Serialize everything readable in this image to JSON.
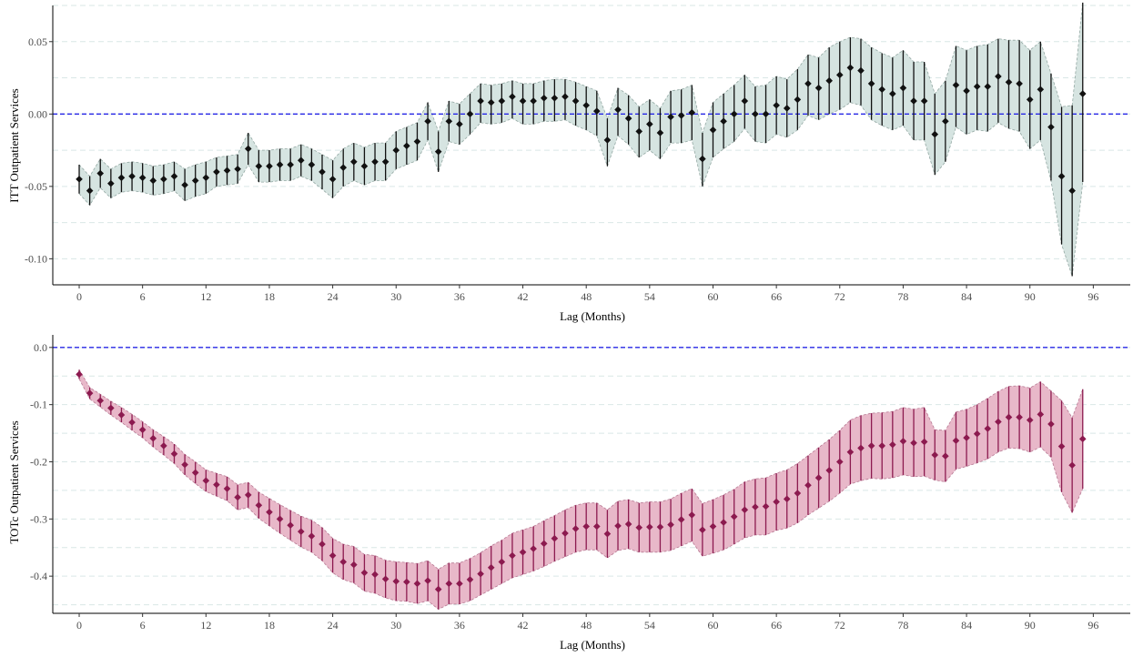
{
  "chart_data": [
    {
      "type": "line",
      "ylabel": "ITT Outpatient Services",
      "xlabel": "Lag (Months)",
      "x_ticks": [
        "0",
        "6",
        "12",
        "18",
        "24",
        "30",
        "36",
        "42",
        "48",
        "54",
        "60",
        "66",
        "72",
        "78",
        "84",
        "90",
        "96"
      ],
      "y_ticks": [
        "0.05",
        "0.00",
        "-0.05",
        "-0.10"
      ],
      "y_tick_values": [
        0.05,
        0.0,
        -0.05,
        -0.1
      ],
      "xlim": [
        -2.5,
        99.5
      ],
      "ylim": [
        -0.118,
        0.075
      ],
      "reference_line": 0.0,
      "grid": "horizontal",
      "colors": {
        "point": "#111111",
        "ribbon": "#d6e4e1",
        "ribbon_edge": "#93a8a3",
        "reference": "#2626e6"
      },
      "series": [
        {
          "x": [
            0,
            1,
            2,
            3,
            4,
            5,
            6,
            7,
            8,
            9,
            10,
            11,
            12,
            13,
            14,
            15,
            16,
            17,
            18,
            19,
            20,
            21,
            22,
            23,
            24,
            25,
            26,
            27,
            28,
            29,
            30,
            31,
            32,
            33,
            34,
            35,
            36,
            37,
            38,
            39,
            40,
            41,
            42,
            43,
            44,
            45,
            46,
            47,
            48,
            49,
            50,
            51,
            52,
            53,
            54,
            55,
            56,
            57,
            58,
            59,
            60,
            61,
            62,
            63,
            64,
            65,
            66,
            67,
            68,
            69,
            70,
            71,
            72,
            73,
            74,
            75,
            76,
            77,
            78,
            79,
            80,
            81,
            82,
            83,
            84,
            85,
            86,
            87,
            88,
            89,
            90,
            91,
            92,
            93,
            94,
            95
          ],
          "values": [
            -0.045,
            -0.053,
            -0.041,
            -0.048,
            -0.044,
            -0.043,
            -0.044,
            -0.046,
            -0.045,
            -0.043,
            -0.049,
            -0.046,
            -0.044,
            -0.04,
            -0.039,
            -0.038,
            -0.024,
            -0.036,
            -0.036,
            -0.035,
            -0.035,
            -0.032,
            -0.035,
            -0.04,
            -0.045,
            -0.037,
            -0.033,
            -0.036,
            -0.033,
            -0.033,
            -0.025,
            -0.022,
            -0.019,
            -0.005,
            -0.026,
            -0.005,
            -0.007,
            0.0,
            0.009,
            0.008,
            0.009,
            0.012,
            0.009,
            0.009,
            0.011,
            0.011,
            0.012,
            0.009,
            0.006,
            0.002,
            -0.018,
            0.003,
            -0.003,
            -0.012,
            -0.007,
            -0.013,
            -0.002,
            -0.001,
            0.001,
            -0.031,
            -0.011,
            -0.005,
            0.0,
            0.009,
            0.0,
            0.0,
            0.006,
            0.004,
            0.01,
            0.021,
            0.018,
            0.023,
            0.027,
            0.032,
            0.03,
            0.021,
            0.017,
            0.014,
            0.018,
            0.009,
            0.009,
            -0.014,
            -0.005,
            0.02,
            0.016,
            0.019,
            0.019,
            0.026,
            0.022,
            0.021,
            0.01,
            0.017,
            -0.009,
            -0.043,
            -0.053,
            0.014
          ],
          "lower": [
            -0.055,
            -0.063,
            -0.051,
            -0.058,
            -0.054,
            -0.053,
            -0.054,
            -0.056,
            -0.055,
            -0.053,
            -0.06,
            -0.057,
            -0.055,
            -0.05,
            -0.049,
            -0.048,
            -0.035,
            -0.047,
            -0.047,
            -0.046,
            -0.046,
            -0.043,
            -0.046,
            -0.052,
            -0.058,
            -0.05,
            -0.046,
            -0.049,
            -0.046,
            -0.046,
            -0.038,
            -0.035,
            -0.032,
            -0.018,
            -0.04,
            -0.019,
            -0.021,
            -0.014,
            -0.006,
            -0.007,
            -0.006,
            -0.003,
            -0.007,
            -0.007,
            -0.005,
            -0.005,
            -0.004,
            -0.008,
            -0.011,
            -0.015,
            -0.036,
            -0.015,
            -0.021,
            -0.03,
            -0.025,
            -0.031,
            -0.02,
            -0.02,
            -0.018,
            -0.05,
            -0.03,
            -0.024,
            -0.019,
            -0.01,
            -0.019,
            -0.02,
            -0.014,
            -0.016,
            -0.011,
            -0.001,
            -0.004,
            0.0,
            0.003,
            0.008,
            0.006,
            -0.004,
            -0.008,
            -0.011,
            -0.008,
            -0.018,
            -0.018,
            -0.042,
            -0.033,
            -0.009,
            -0.014,
            -0.011,
            -0.012,
            -0.006,
            -0.01,
            -0.012,
            -0.024,
            -0.018,
            -0.046,
            -0.09,
            -0.112,
            -0.047
          ],
          "upper": [
            -0.035,
            -0.043,
            -0.031,
            -0.038,
            -0.034,
            -0.033,
            -0.034,
            -0.036,
            -0.035,
            -0.033,
            -0.038,
            -0.035,
            -0.033,
            -0.03,
            -0.029,
            -0.028,
            -0.013,
            -0.025,
            -0.025,
            -0.024,
            -0.024,
            -0.021,
            -0.024,
            -0.028,
            -0.032,
            -0.024,
            -0.02,
            -0.023,
            -0.02,
            -0.02,
            -0.012,
            -0.009,
            -0.006,
            0.008,
            -0.012,
            0.009,
            0.007,
            0.014,
            0.021,
            0.02,
            0.021,
            0.023,
            0.021,
            0.021,
            0.023,
            0.024,
            0.024,
            0.022,
            0.019,
            0.016,
            -0.003,
            0.018,
            0.013,
            0.005,
            0.01,
            0.004,
            0.016,
            0.017,
            0.02,
            -0.013,
            0.008,
            0.014,
            0.02,
            0.027,
            0.019,
            0.02,
            0.026,
            0.024,
            0.031,
            0.041,
            0.039,
            0.046,
            0.05,
            0.053,
            0.052,
            0.046,
            0.042,
            0.039,
            0.044,
            0.036,
            0.036,
            0.014,
            0.023,
            0.047,
            0.044,
            0.047,
            0.048,
            0.052,
            0.051,
            0.051,
            0.044,
            0.05,
            0.028,
            0.005,
            0.006,
            0.077
          ]
        }
      ]
    },
    {
      "type": "line",
      "ylabel": "TOTc Outpatient Services",
      "xlabel": "Lag (Months)",
      "x_ticks": [
        "0",
        "6",
        "12",
        "18",
        "24",
        "30",
        "36",
        "42",
        "48",
        "54",
        "60",
        "66",
        "72",
        "78",
        "84",
        "90",
        "96"
      ],
      "y_ticks": [
        "0.0",
        "-0.1",
        "-0.2",
        "-0.3",
        "-0.4"
      ],
      "y_tick_values": [
        0.0,
        -0.1,
        -0.2,
        -0.3,
        -0.4
      ],
      "xlim": [
        -2.5,
        99.5
      ],
      "ylim": [
        -0.465,
        0.022
      ],
      "reference_line": 0.0,
      "grid": "horizontal",
      "colors": {
        "point": "#8c1a4f",
        "ribbon": "#e8b8c9",
        "ribbon_edge": "#b87a94",
        "reference": "#2626e6"
      },
      "series": [
        {
          "x": [
            0,
            1,
            2,
            3,
            4,
            5,
            6,
            7,
            8,
            9,
            10,
            11,
            12,
            13,
            14,
            15,
            16,
            17,
            18,
            19,
            20,
            21,
            22,
            23,
            24,
            25,
            26,
            27,
            28,
            29,
            30,
            31,
            32,
            33,
            34,
            35,
            36,
            37,
            38,
            39,
            40,
            41,
            42,
            43,
            44,
            45,
            46,
            47,
            48,
            49,
            50,
            51,
            52,
            53,
            54,
            55,
            56,
            57,
            58,
            59,
            60,
            61,
            62,
            63,
            64,
            65,
            66,
            67,
            68,
            69,
            70,
            71,
            72,
            73,
            74,
            75,
            76,
            77,
            78,
            79,
            80,
            81,
            82,
            83,
            84,
            85,
            86,
            87,
            88,
            89,
            90,
            91,
            92,
            93,
            94,
            95
          ],
          "values": [
            -0.047,
            -0.08,
            -0.093,
            -0.106,
            -0.118,
            -0.131,
            -0.144,
            -0.159,
            -0.172,
            -0.186,
            -0.205,
            -0.219,
            -0.233,
            -0.24,
            -0.247,
            -0.262,
            -0.258,
            -0.276,
            -0.288,
            -0.3,
            -0.311,
            -0.322,
            -0.33,
            -0.344,
            -0.364,
            -0.375,
            -0.38,
            -0.394,
            -0.397,
            -0.405,
            -0.409,
            -0.41,
            -0.413,
            -0.408,
            -0.423,
            -0.413,
            -0.413,
            -0.406,
            -0.396,
            -0.385,
            -0.375,
            -0.364,
            -0.358,
            -0.352,
            -0.343,
            -0.334,
            -0.325,
            -0.317,
            -0.313,
            -0.313,
            -0.326,
            -0.312,
            -0.309,
            -0.315,
            -0.314,
            -0.314,
            -0.31,
            -0.301,
            -0.293,
            -0.319,
            -0.313,
            -0.306,
            -0.296,
            -0.284,
            -0.279,
            -0.278,
            -0.27,
            -0.265,
            -0.255,
            -0.241,
            -0.228,
            -0.215,
            -0.2,
            -0.183,
            -0.176,
            -0.172,
            -0.172,
            -0.17,
            -0.164,
            -0.167,
            -0.165,
            -0.188,
            -0.19,
            -0.163,
            -0.158,
            -0.151,
            -0.142,
            -0.13,
            -0.122,
            -0.122,
            -0.127,
            -0.117,
            -0.134,
            -0.173,
            -0.206,
            -0.16
          ],
          "lower": [
            -0.055,
            -0.09,
            -0.104,
            -0.118,
            -0.131,
            -0.145,
            -0.158,
            -0.174,
            -0.188,
            -0.203,
            -0.223,
            -0.238,
            -0.252,
            -0.26,
            -0.268,
            -0.284,
            -0.28,
            -0.299,
            -0.312,
            -0.325,
            -0.337,
            -0.349,
            -0.358,
            -0.373,
            -0.394,
            -0.406,
            -0.412,
            -0.426,
            -0.43,
            -0.438,
            -0.443,
            -0.444,
            -0.448,
            -0.443,
            -0.458,
            -0.449,
            -0.449,
            -0.443,
            -0.433,
            -0.423,
            -0.413,
            -0.403,
            -0.397,
            -0.391,
            -0.383,
            -0.374,
            -0.366,
            -0.358,
            -0.354,
            -0.354,
            -0.368,
            -0.355,
            -0.352,
            -0.358,
            -0.358,
            -0.358,
            -0.355,
            -0.347,
            -0.339,
            -0.365,
            -0.36,
            -0.354,
            -0.344,
            -0.333,
            -0.328,
            -0.328,
            -0.32,
            -0.316,
            -0.307,
            -0.293,
            -0.281,
            -0.269,
            -0.255,
            -0.239,
            -0.233,
            -0.229,
            -0.23,
            -0.228,
            -0.223,
            -0.226,
            -0.225,
            -0.232,
            -0.235,
            -0.213,
            -0.208,
            -0.202,
            -0.195,
            -0.183,
            -0.176,
            -0.177,
            -0.183,
            -0.174,
            -0.192,
            -0.253,
            -0.289,
            -0.247
          ],
          "upper": [
            -0.039,
            -0.07,
            -0.082,
            -0.094,
            -0.105,
            -0.117,
            -0.13,
            -0.144,
            -0.156,
            -0.169,
            -0.187,
            -0.2,
            -0.214,
            -0.22,
            -0.226,
            -0.24,
            -0.236,
            -0.253,
            -0.264,
            -0.275,
            -0.285,
            -0.295,
            -0.302,
            -0.315,
            -0.334,
            -0.344,
            -0.348,
            -0.362,
            -0.364,
            -0.372,
            -0.375,
            -0.376,
            -0.378,
            -0.373,
            -0.388,
            -0.377,
            -0.377,
            -0.369,
            -0.359,
            -0.347,
            -0.337,
            -0.325,
            -0.319,
            -0.313,
            -0.303,
            -0.294,
            -0.284,
            -0.276,
            -0.272,
            -0.272,
            -0.284,
            -0.269,
            -0.266,
            -0.272,
            -0.27,
            -0.27,
            -0.265,
            -0.255,
            -0.247,
            -0.273,
            -0.266,
            -0.258,
            -0.248,
            -0.235,
            -0.23,
            -0.228,
            -0.22,
            -0.214,
            -0.203,
            -0.189,
            -0.175,
            -0.161,
            -0.145,
            -0.127,
            -0.119,
            -0.115,
            -0.114,
            -0.112,
            -0.105,
            -0.108,
            -0.105,
            -0.144,
            -0.145,
            -0.113,
            -0.108,
            -0.1,
            -0.089,
            -0.077,
            -0.068,
            -0.067,
            -0.071,
            -0.06,
            -0.076,
            -0.093,
            -0.123,
            -0.073
          ]
        }
      ]
    }
  ]
}
